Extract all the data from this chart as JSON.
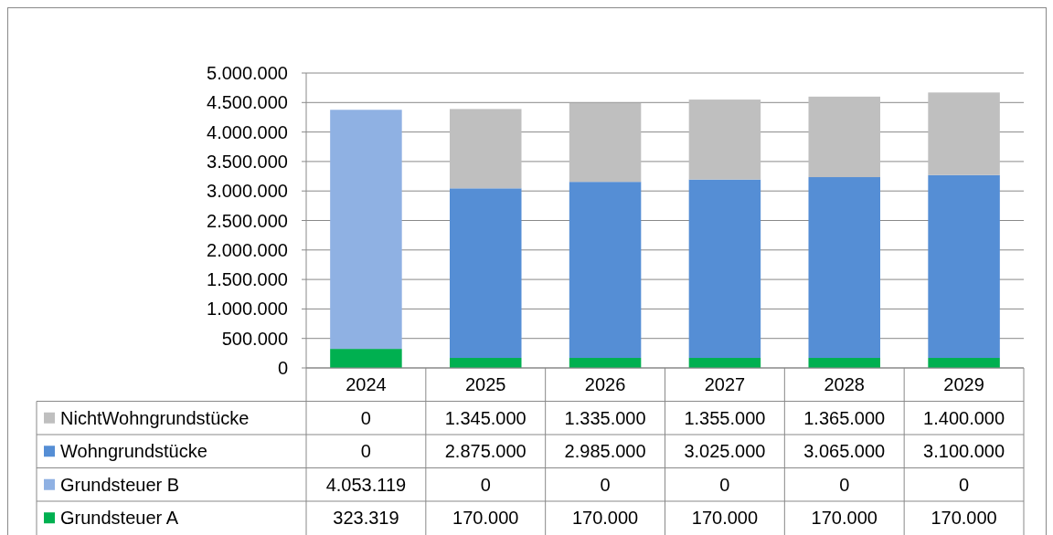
{
  "chart_data": {
    "type": "bar",
    "stacked": true,
    "categories": [
      "2024",
      "2025",
      "2026",
      "2027",
      "2028",
      "2029"
    ],
    "series": [
      {
        "name": "Grundsteuer A",
        "color": "#00b050",
        "values": [
          323319,
          170000,
          170000,
          170000,
          170000,
          170000
        ],
        "value_labels": [
          "323.319",
          "170.000",
          "170.000",
          "170.000",
          "170.000",
          "170.000"
        ]
      },
      {
        "name": "Grundsteuer B",
        "color": "#8fb1e3",
        "values": [
          4053119,
          0,
          0,
          0,
          0,
          0
        ],
        "value_labels": [
          "4.053.119",
          "0",
          "0",
          "0",
          "0",
          "0"
        ]
      },
      {
        "name": "Wohngrundstücke",
        "color": "#558ed5",
        "values": [
          0,
          2875000,
          2985000,
          3025000,
          3065000,
          3100000
        ],
        "value_labels": [
          "0",
          "2.875.000",
          "2.985.000",
          "3.025.000",
          "3.065.000",
          "3.100.000"
        ]
      },
      {
        "name": "NichtWohngrundstücke",
        "color": "#bfbfbf",
        "values": [
          0,
          1345000,
          1335000,
          1355000,
          1365000,
          1400000
        ],
        "value_labels": [
          "0",
          "1.345.000",
          "1.335.000",
          "1.355.000",
          "1.365.000",
          "1.400.000"
        ]
      }
    ],
    "ylim": [
      0,
      5000000
    ],
    "yticks": [
      {
        "value": 0,
        "label": "0"
      },
      {
        "value": 500000,
        "label": "500.000"
      },
      {
        "value": 1000000,
        "label": "1.000.000"
      },
      {
        "value": 1500000,
        "label": "1.500.000"
      },
      {
        "value": 2000000,
        "label": "2.000.000"
      },
      {
        "value": 2500000,
        "label": "2.500.000"
      },
      {
        "value": 3000000,
        "label": "3.000.000"
      },
      {
        "value": 3500000,
        "label": "3.500.000"
      },
      {
        "value": 4000000,
        "label": "4.000.000"
      },
      {
        "value": 4500000,
        "label": "4.500.000"
      },
      {
        "value": 5000000,
        "label": "5.000.000"
      }
    ],
    "grid": "y",
    "legend": "bottom"
  }
}
